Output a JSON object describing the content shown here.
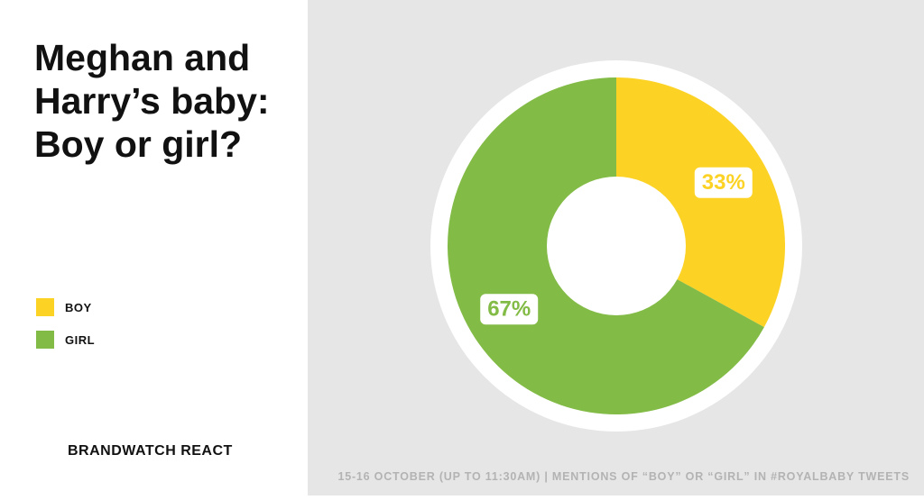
{
  "chart_data": {
    "type": "pie",
    "title": "Meghan and Harry’s baby: Boy or girl?",
    "categories": [
      "BOY",
      "GIRL"
    ],
    "values": [
      33,
      67
    ],
    "value_labels": [
      "33%",
      "67%"
    ],
    "colors": [
      "#fcd225",
      "#82bb45"
    ],
    "source": "BRANDWATCH REACT",
    "footnote": "15-16 OCTOBER (UP TO 11:30AM) | MENTIONS OF “BOY” OR “GIRL” IN #ROYALBABY TWEETS"
  }
}
